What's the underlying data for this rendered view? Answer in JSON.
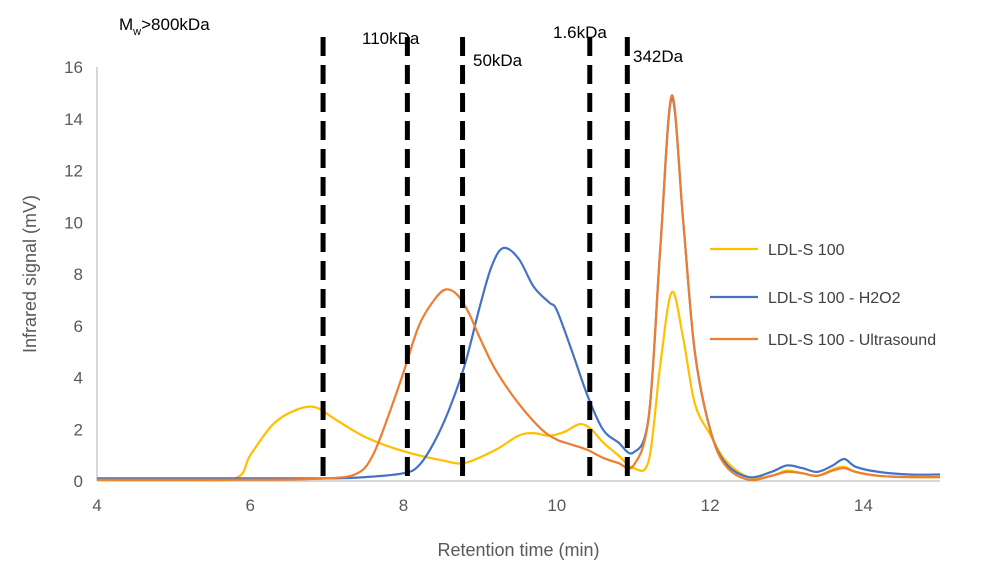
{
  "chart_data": {
    "type": "line",
    "xlabel": "Retention time (min)",
    "ylabel": "Infrared signal (mV)",
    "xlim": [
      4,
      15
    ],
    "ylim": [
      0,
      16
    ],
    "xticks": [
      4,
      6,
      8,
      10,
      12,
      14
    ],
    "yticks": [
      0,
      2,
      4,
      6,
      8,
      10,
      12,
      14,
      16
    ],
    "grid": false,
    "legend_position": "right",
    "series": [
      {
        "name": "LDL-S 100",
        "color": "#FFC000",
        "x": [
          4.0,
          5.0,
          5.8,
          6.0,
          6.3,
          6.6,
          6.85,
          7.1,
          7.5,
          8.0,
          8.5,
          8.8,
          9.2,
          9.5,
          9.7,
          9.9,
          10.1,
          10.3,
          10.45,
          10.6,
          10.8,
          11.0,
          11.2,
          11.35,
          11.5,
          11.65,
          11.8,
          12.0,
          12.2,
          12.5,
          12.8,
          13.0,
          13.2,
          13.4,
          13.6,
          13.75,
          13.9,
          14.2,
          14.6,
          15.0
        ],
        "y": [
          0.05,
          0.05,
          0.1,
          1.0,
          2.2,
          2.75,
          2.85,
          2.4,
          1.7,
          1.15,
          0.8,
          0.7,
          1.2,
          1.75,
          1.85,
          1.75,
          1.9,
          2.2,
          2.0,
          1.5,
          1.0,
          0.5,
          0.8,
          4.5,
          7.3,
          5.5,
          3.0,
          1.8,
          0.8,
          0.15,
          0.2,
          0.4,
          0.3,
          0.2,
          0.45,
          0.55,
          0.35,
          0.2,
          0.15,
          0.15
        ]
      },
      {
        "name": "LDL-S 100 - H2O2",
        "color": "#4472C4",
        "x": [
          4.0,
          6.0,
          7.0,
          7.5,
          8.0,
          8.2,
          8.4,
          8.6,
          8.8,
          9.0,
          9.15,
          9.3,
          9.5,
          9.7,
          9.9,
          10.0,
          10.2,
          10.4,
          10.6,
          10.8,
          11.0,
          11.2,
          11.35,
          11.5,
          11.65,
          11.8,
          12.0,
          12.2,
          12.5,
          12.8,
          13.0,
          13.2,
          13.4,
          13.6,
          13.75,
          13.9,
          14.2,
          14.6,
          15.0
        ],
        "y": [
          0.1,
          0.1,
          0.1,
          0.15,
          0.3,
          0.6,
          1.5,
          2.8,
          4.5,
          6.8,
          8.3,
          9.0,
          8.6,
          7.5,
          6.9,
          6.6,
          5.0,
          3.3,
          2.0,
          1.5,
          1.1,
          2.5,
          9.0,
          14.8,
          10.0,
          5.0,
          2.0,
          0.7,
          0.15,
          0.35,
          0.6,
          0.5,
          0.35,
          0.6,
          0.85,
          0.55,
          0.35,
          0.25,
          0.25
        ]
      },
      {
        "name": "LDL-S 100 - Ultrasound",
        "color": "#ED7D31",
        "x": [
          4.0,
          6.0,
          7.0,
          7.4,
          7.6,
          7.8,
          8.0,
          8.2,
          8.4,
          8.55,
          8.7,
          8.85,
          9.0,
          9.2,
          9.5,
          9.8,
          10.0,
          10.2,
          10.4,
          10.6,
          10.8,
          11.0,
          11.2,
          11.35,
          11.5,
          11.65,
          11.8,
          12.0,
          12.2,
          12.5,
          12.8,
          13.0,
          13.2,
          13.4,
          13.6,
          13.75,
          13.9,
          14.2,
          14.6,
          15.0
        ],
        "y": [
          0.05,
          0.05,
          0.1,
          0.3,
          1.0,
          2.5,
          4.2,
          6.0,
          7.0,
          7.4,
          7.2,
          6.5,
          5.5,
          4.3,
          3.0,
          2.0,
          1.6,
          1.4,
          1.2,
          0.9,
          0.7,
          0.6,
          2.5,
          9.0,
          14.9,
          10.0,
          5.0,
          2.0,
          0.6,
          0.05,
          0.2,
          0.35,
          0.3,
          0.2,
          0.4,
          0.5,
          0.35,
          0.2,
          0.15,
          0.15
        ]
      }
    ],
    "dividers": [
      {
        "x": 6.95,
        "label": "M",
        "sub": "w",
        "suffix": ">800kDa"
      },
      {
        "x": 8.05,
        "label": "110kDa"
      },
      {
        "x": 8.77,
        "label": "50kDa"
      },
      {
        "x": 10.43,
        "label": "1.6kDa"
      },
      {
        "x": 10.92,
        "label": "342Da"
      }
    ]
  }
}
